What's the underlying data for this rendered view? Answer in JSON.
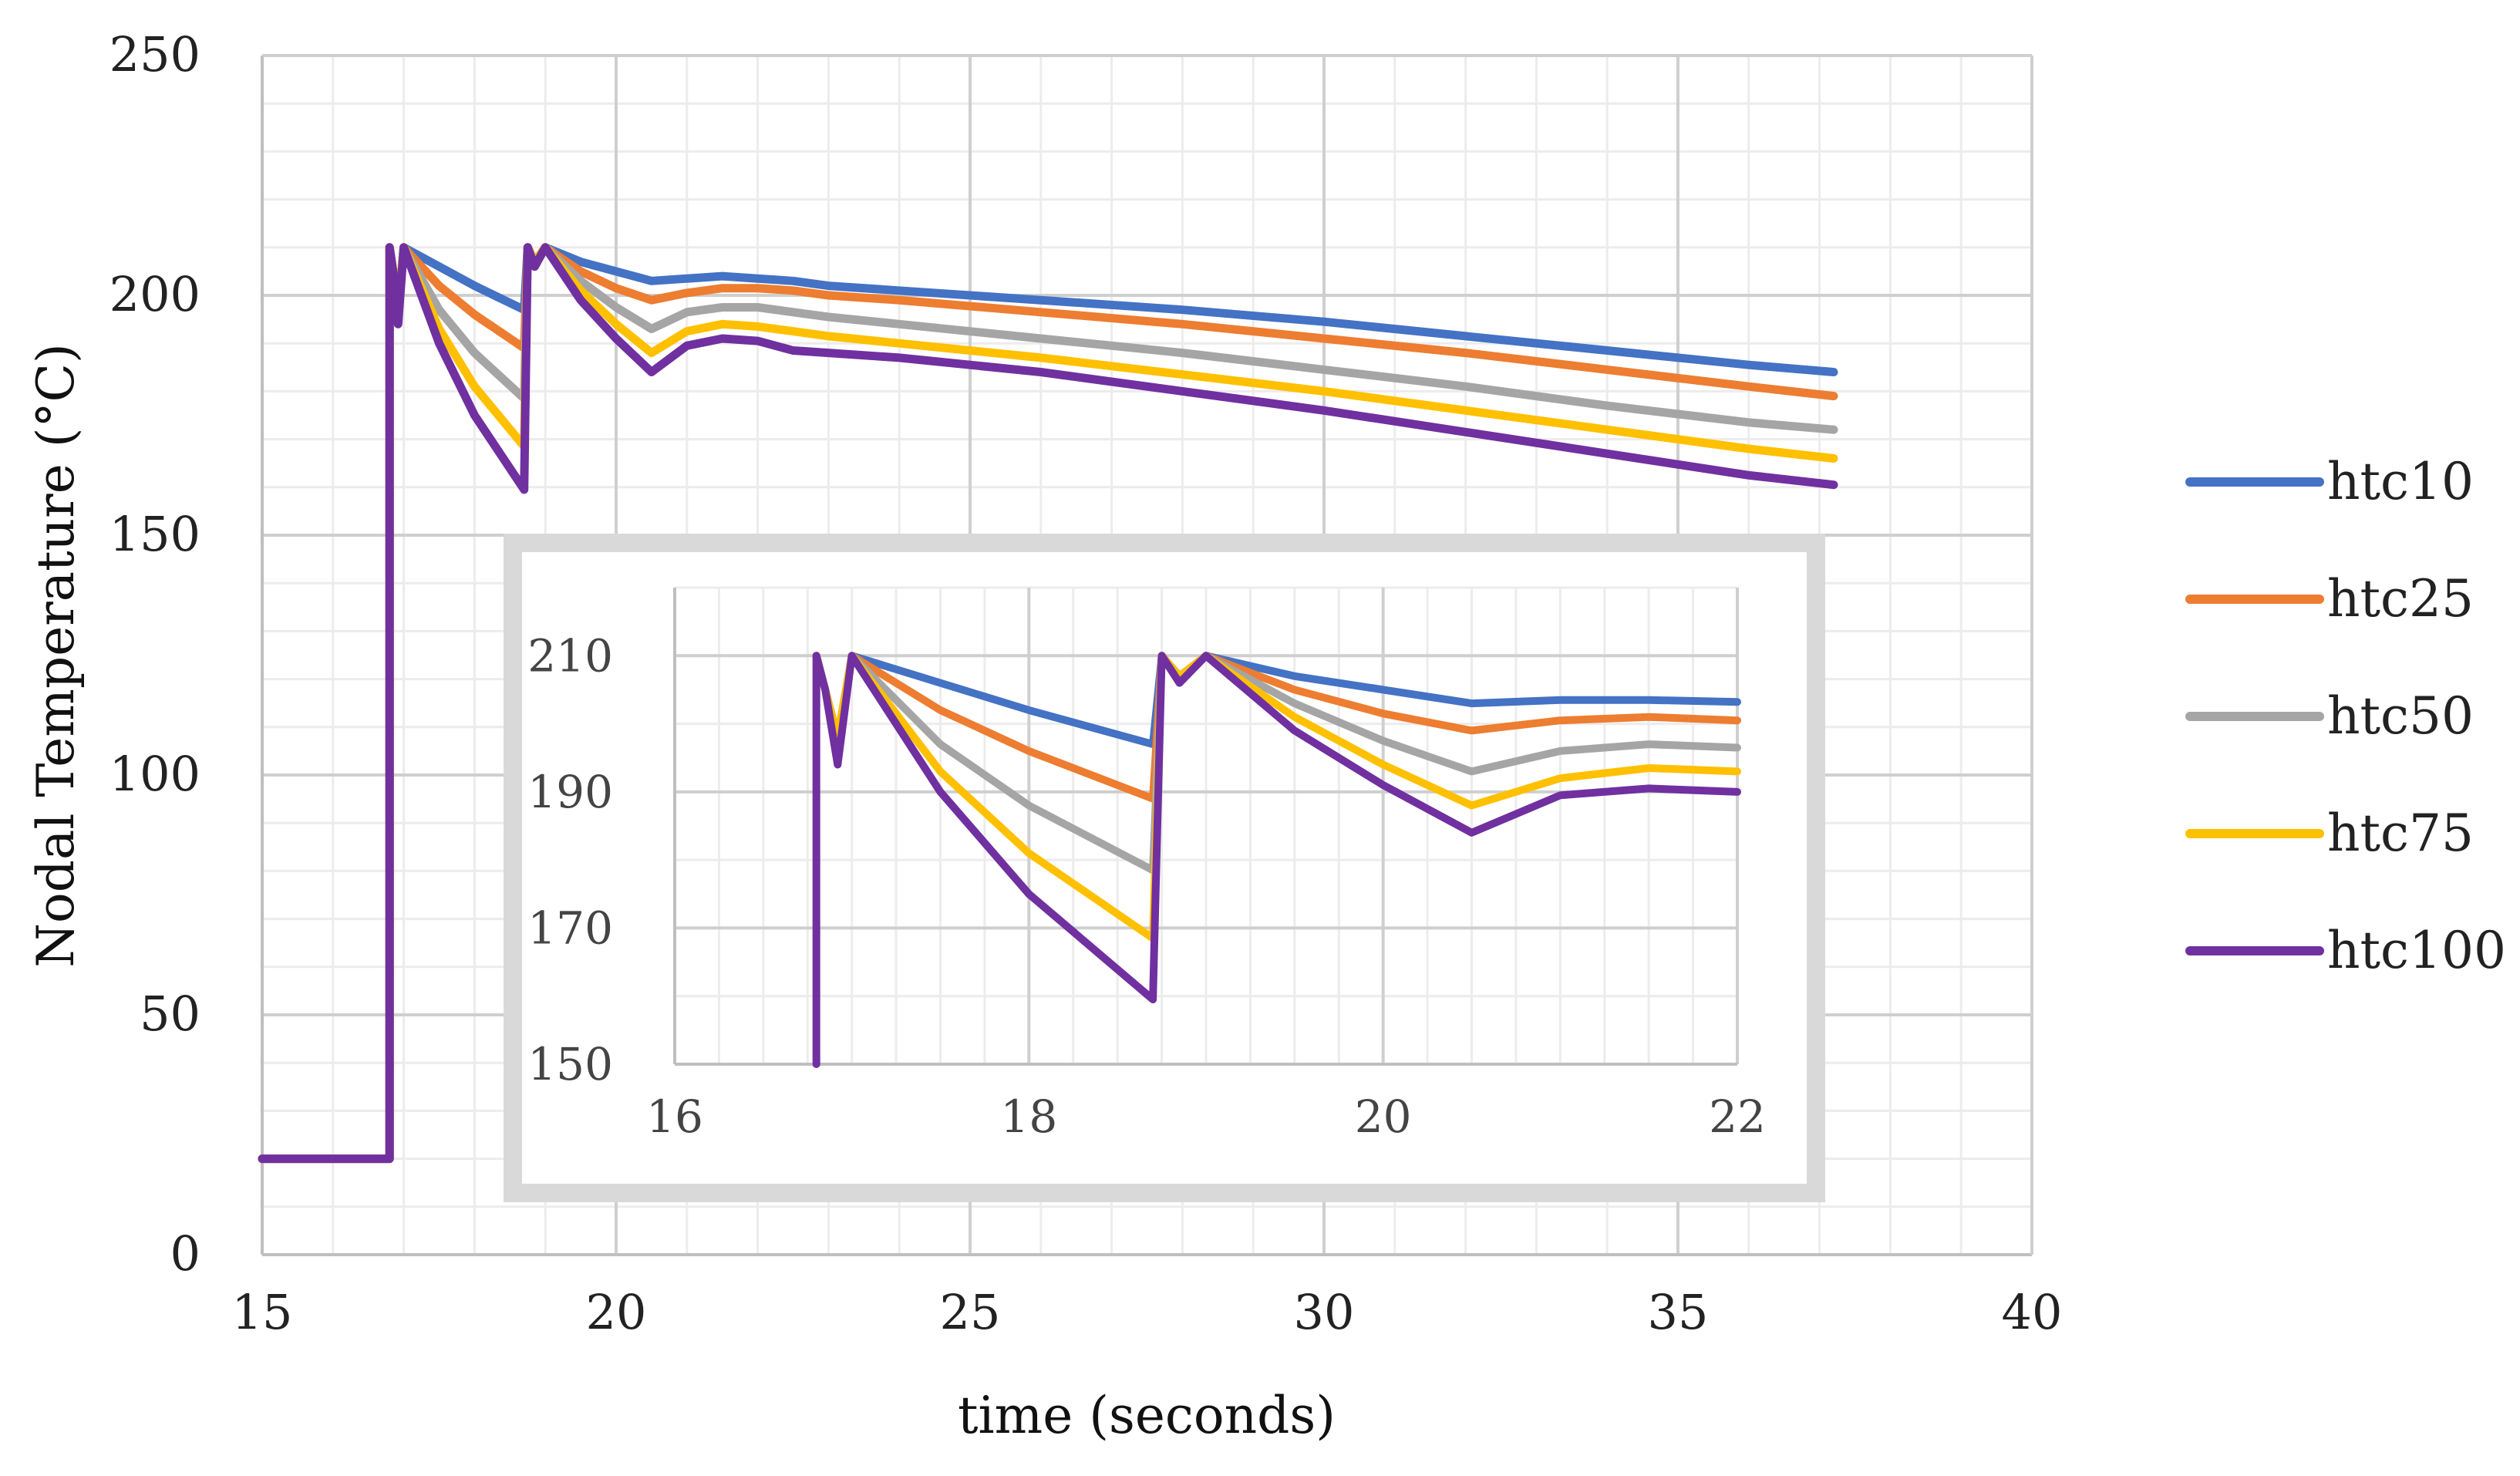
{
  "chart_data": [
    {
      "type": "line",
      "title": "",
      "xlabel": "time (seconds)",
      "ylabel": "Nodal  Temperature (°C)",
      "xlim": [
        15,
        40
      ],
      "ylim": [
        0,
        250
      ],
      "xticks": [
        "15",
        "20",
        "25",
        "30",
        "35",
        "40"
      ],
      "yticks": [
        "0",
        "50",
        "100",
        "150",
        "200",
        "250"
      ],
      "grid": true,
      "legend_position": "right",
      "series": [
        {
          "name": "htc10",
          "color": "#4472C4",
          "x": [
            15,
            16.8,
            16.8,
            16.85,
            16.92,
            17.0,
            17.5,
            18.0,
            18.7,
            18.75,
            18.85,
            19.0,
            19.5,
            20.0,
            20.5,
            21.0,
            21.5,
            22.0,
            22.5,
            23.0,
            24.0,
            26.0,
            28.0,
            30.0,
            32.0,
            34.0,
            36.0,
            37.2
          ],
          "y": [
            20,
            20,
            210,
            205,
            198,
            210,
            206,
            202,
            197,
            210,
            207,
            210,
            207,
            205,
            203,
            203.5,
            204,
            203.5,
            203,
            202,
            201,
            199,
            197,
            194.5,
            191.5,
            188.5,
            185.5,
            184
          ]
        },
        {
          "name": "htc25",
          "color": "#ED7D31",
          "x": [
            15,
            16.8,
            16.8,
            16.85,
            16.92,
            17.0,
            17.5,
            18.0,
            18.7,
            18.75,
            18.85,
            19.0,
            19.5,
            20.0,
            20.5,
            21.0,
            21.5,
            22.0,
            22.5,
            23.0,
            24.0,
            26.0,
            28.0,
            30.0,
            32.0,
            34.0,
            36.0,
            37.2
          ],
          "y": [
            20,
            20,
            210,
            205,
            198,
            210,
            202,
            196,
            189,
            210,
            207,
            210,
            205,
            201.5,
            199,
            200.5,
            201.5,
            201.5,
            201,
            200,
            199,
            196.5,
            194,
            191,
            188,
            184.5,
            181,
            179
          ]
        },
        {
          "name": "htc50",
          "color": "#A5A5A5",
          "x": [
            15,
            16.8,
            16.8,
            16.85,
            16.92,
            17.0,
            17.5,
            18.0,
            18.7,
            18.75,
            18.85,
            19.0,
            19.5,
            20.0,
            20.5,
            21.0,
            21.5,
            22.0,
            22.5,
            23.0,
            24.0,
            26.0,
            28.0,
            30.0,
            32.0,
            34.0,
            36.0,
            37.2
          ],
          "y": [
            20,
            20,
            210,
            205,
            198,
            210,
            197,
            188,
            178.5,
            210,
            207,
            210,
            203,
            197.5,
            193,
            196.5,
            197.5,
            197.5,
            196.5,
            195.5,
            194,
            191,
            188,
            184.5,
            181,
            177,
            173.5,
            172
          ]
        },
        {
          "name": "htc75",
          "color": "#FFC000",
          "x": [
            15,
            16.8,
            16.8,
            16.85,
            16.92,
            17.0,
            17.5,
            18.0,
            18.7,
            18.75,
            18.85,
            19.0,
            19.5,
            20.0,
            20.5,
            21.0,
            21.5,
            22.0,
            22.5,
            23.0,
            24.0,
            26.0,
            28.0,
            30.0,
            32.0,
            34.0,
            36.0,
            37.2
          ],
          "y": [
            20,
            20,
            210,
            205,
            198,
            210,
            193,
            181,
            168.5,
            210,
            207,
            210,
            201,
            194,
            188,
            192.5,
            194,
            193.5,
            192.5,
            191.5,
            190,
            187,
            183.5,
            180,
            176,
            172,
            168,
            166
          ]
        },
        {
          "name": "htc100",
          "color": "#7030A0",
          "x": [
            15,
            16.8,
            16.8,
            16.85,
            16.92,
            17.0,
            17.2,
            17.5,
            18.0,
            18.7,
            18.7,
            18.75,
            18.85,
            19.0,
            19.5,
            20.0,
            20.5,
            21.0,
            21.5,
            22.0,
            22.5,
            23.0,
            24.0,
            26.0,
            28.0,
            30.0,
            32.0,
            34.0,
            36.0,
            37.2
          ],
          "y": [
            20,
            20,
            210,
            205,
            194,
            210,
            202,
            190,
            175,
            159.5,
            159.5,
            210,
            206,
            210,
            199,
            191,
            184,
            189.5,
            191,
            190.5,
            188.5,
            188,
            187,
            184,
            180,
            176,
            171.5,
            167,
            162.5,
            160.5
          ]
        }
      ]
    },
    {
      "type": "line",
      "title": "",
      "xlabel": "",
      "ylabel": "",
      "xlim": [
        16,
        22
      ],
      "ylim": [
        150,
        220
      ],
      "xticks": [
        "16",
        "18",
        "20",
        "22"
      ],
      "yticks": [
        "150",
        "170",
        "190",
        "210"
      ],
      "grid": true,
      "note": "inset zoom of the main chart, same series and colors",
      "series": [
        {
          "name": "htc10",
          "color": "#4472C4",
          "x": [
            16.8,
            16.85,
            16.92,
            17.0,
            17.5,
            18.0,
            18.7,
            18.75,
            18.85,
            19.0,
            19.5,
            20.0,
            20.5,
            21.0,
            21.5,
            22.0
          ],
          "y": [
            210,
            205,
            198,
            210,
            206,
            202,
            197,
            210,
            207,
            210,
            207,
            205,
            203,
            203.5,
            203.5,
            203.2
          ]
        },
        {
          "name": "htc25",
          "color": "#ED7D31",
          "x": [
            16.8,
            16.85,
            16.92,
            17.0,
            17.5,
            18.0,
            18.7,
            18.75,
            18.85,
            19.0,
            19.5,
            20.0,
            20.5,
            21.0,
            21.5,
            22.0
          ],
          "y": [
            210,
            205,
            198,
            210,
            202,
            196,
            189,
            210,
            207,
            210,
            205,
            201.5,
            199,
            200.5,
            201,
            200.5
          ]
        },
        {
          "name": "htc50",
          "color": "#A5A5A5",
          "x": [
            16.8,
            16.85,
            16.92,
            17.0,
            17.5,
            18.0,
            18.7,
            18.75,
            18.85,
            19.0,
            19.5,
            20.0,
            20.5,
            21.0,
            21.5,
            22.0
          ],
          "y": [
            210,
            205,
            198,
            210,
            197,
            188,
            178.5,
            210,
            207,
            210,
            203,
            197.5,
            193,
            196,
            197,
            196.5
          ]
        },
        {
          "name": "htc75",
          "color": "#FFC000",
          "x": [
            16.8,
            16.85,
            16.92,
            17.0,
            17.5,
            18.0,
            18.7,
            18.75,
            18.85,
            19.0,
            19.5,
            20.0,
            20.5,
            21.0,
            21.5,
            22.0
          ],
          "y": [
            210,
            205,
            198,
            210,
            193,
            181,
            168.5,
            210,
            207,
            210,
            201,
            194,
            188,
            192,
            193.5,
            193
          ]
        },
        {
          "name": "htc100",
          "color": "#7030A0",
          "x": [
            16.8,
            16.8,
            16.85,
            16.92,
            17.0,
            17.2,
            17.5,
            18.0,
            18.7,
            18.7,
            18.75,
            18.85,
            19.0,
            19.5,
            20.0,
            20.5,
            21.0,
            21.5,
            22.0
          ],
          "y": [
            150,
            210,
            205,
            194,
            210,
            202,
            190,
            175,
            159.5,
            159.5,
            210,
            206,
            210,
            199,
            191,
            184,
            189.5,
            190.5,
            190
          ]
        }
      ]
    }
  ]
}
